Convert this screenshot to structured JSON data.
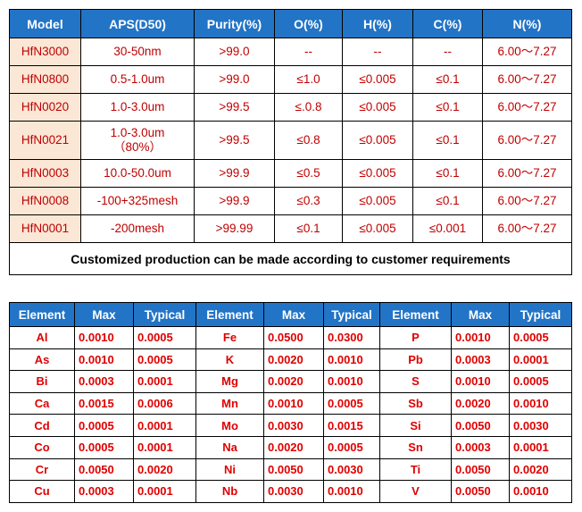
{
  "spec_table": {
    "headers": [
      "Model",
      "APS(D50)",
      "Purity(%)",
      "O(%)",
      "H(%)",
      "C(%)",
      "N(%)"
    ],
    "rows": [
      {
        "model": "HfN3000",
        "aps": "30-50nm",
        "aps_sub": "",
        "purity": ">99.0",
        "o": "--",
        "h": "--",
        "c": "--",
        "n": "6.00～7.27"
      },
      {
        "model": "HfN0800",
        "aps": "0.5-1.0um",
        "aps_sub": "",
        "purity": ">99.0",
        "o": "≤1.0",
        "h": "≤0.005",
        "c": "≤0.1",
        "n": "6.00～7.27"
      },
      {
        "model": "HfN0020",
        "aps": "1.0-3.0um",
        "aps_sub": "",
        "purity": ">99.5",
        "o": "≤.0.8",
        "h": "≤0.005",
        "c": "≤0.1",
        "n": "6.00～7.27"
      },
      {
        "model": "HfN0021",
        "aps": "1.0-3.0um",
        "aps_sub": "（80%）",
        "purity": ">99.5",
        "o": "≤0.8",
        "h": "≤0.005",
        "c": "≤0.1",
        "n": "6.00～7.27"
      },
      {
        "model": "HfN0003",
        "aps": "10.0-50.0um",
        "aps_sub": "",
        "purity": ">99.9",
        "o": "≤0.5",
        "h": "≤0.005",
        "c": "≤0.1",
        "n": "6.00～7.27"
      },
      {
        "model": "HfN0008",
        "aps": "-100+325mesh",
        "aps_sub": "",
        "purity": ">99.9",
        "o": "≤0.3",
        "h": "≤0.005",
        "c": "≤0.1",
        "n": "6.00～7.27"
      },
      {
        "model": "HfN0001",
        "aps": "-200mesh",
        "aps_sub": "",
        "purity": ">99.99",
        "o": "≤0.1",
        "h": "≤0.005",
        "c": "≤0.001",
        "n": "6.00～7.27"
      }
    ],
    "note": "Customized production can be made according to customer requirements"
  },
  "element_table": {
    "headers": [
      "Element",
      "Max",
      "Typical",
      "Element",
      "Max",
      "Typical",
      "Element",
      "Max",
      "Typical"
    ],
    "rows": [
      [
        "Al",
        "0.0010",
        "0.0005",
        "Fe",
        "0.0500",
        "0.0300",
        "P",
        "0.0010",
        "0.0005"
      ],
      [
        "As",
        "0.0010",
        "0.0005",
        "K",
        "0.0020",
        "0.0010",
        "Pb",
        "0.0003",
        "0.0001"
      ],
      [
        "Bi",
        "0.0003",
        "0.0001",
        "Mg",
        "0.0020",
        "0.0010",
        "S",
        "0.0010",
        "0.0005"
      ],
      [
        "Ca",
        "0.0015",
        "0.0006",
        "Mn",
        "0.0010",
        "0.0005",
        "Sb",
        "0.0020",
        "0.0010"
      ],
      [
        "Cd",
        "0.0005",
        "0.0001",
        "Mo",
        "0.0030",
        "0.0015",
        "Si",
        "0.0050",
        "0.0030"
      ],
      [
        "Co",
        "0.0005",
        "0.0001",
        "Na",
        "0.0020",
        "0.0005",
        "Sn",
        "0.0003",
        "0.0001"
      ],
      [
        "Cr",
        "0.0050",
        "0.0020",
        "Ni",
        "0.0050",
        "0.0030",
        "Ti",
        "0.0050",
        "0.0020"
      ],
      [
        "Cu",
        "0.0003",
        "0.0001",
        "Nb",
        "0.0030",
        "0.0010",
        "V",
        "0.0050",
        "0.0010"
      ]
    ]
  }
}
